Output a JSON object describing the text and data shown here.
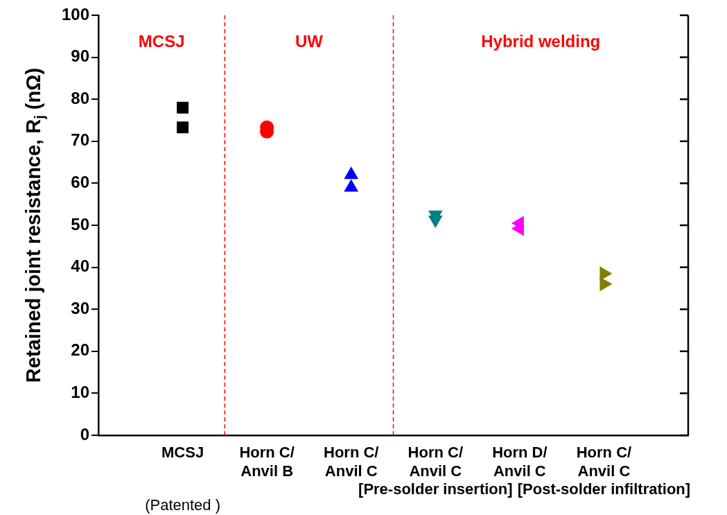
{
  "chart_data": {
    "type": "scatter",
    "ylabel": "Retained joint resistance, R$_{j}$ (nΩ)",
    "categories": [
      "MCSJ",
      "Horn C/\nAnvil B",
      "Horn C/\nAnvil C",
      "Horn C/\nAnvil C\n[Pre-solder insertion]",
      "Horn D/\nAnvil C",
      "Horn C/\nAnvil C\n[Post-solder infiltration]"
    ],
    "series": [
      {
        "color": "#000000",
        "marker": "square",
        "x": [
          "MCSJ",
          "MCSJ"
        ],
        "values": [
          78,
          73.3
        ]
      },
      {
        "color": "#ff0000",
        "marker": "circle",
        "x": [
          "Horn C/\nAnvil B",
          "Horn C/\nAnvil B"
        ],
        "values": [
          73.3,
          72.3
        ]
      },
      {
        "color": "#0000ff",
        "marker": "triangle",
        "x": [
          "Horn C/\nAnvil C",
          "Horn C/\nAnvil C"
        ],
        "values": [
          62,
          59
        ]
      },
      {
        "color": "#008080",
        "marker": "triangle-down",
        "x": [
          "Horn C/\nAnvil C\n[Pre-solder insertion]",
          "Horn C/\nAnvil C\n[Pre-solder insertion]"
        ],
        "values": [
          52.5,
          51.3
        ]
      },
      {
        "color": "#ff00ff",
        "marker": "triangle-left",
        "x": [
          "Horn D/\nAnvil C",
          "Horn D/\nAnvil C"
        ],
        "values": [
          50.5,
          49.2
        ]
      },
      {
        "color": "#808000",
        "marker": "triangle-right",
        "x": [
          "Horn C/\nAnvil C\n[Post-solder infiltration]",
          "Horn C/\nAnvil C\n[Post-solder infiltration]"
        ],
        "values": [
          38.5,
          36
        ]
      }
    ],
    "ylim": [
      0,
      100
    ],
    "yticks": [
      0,
      10,
      20,
      30,
      40,
      50,
      60,
      70,
      80,
      90,
      100
    ],
    "grid": false,
    "legend": false,
    "annotations": [
      "MCSJ",
      "UW",
      "Hybrid welding",
      "(Patented )"
    ]
  }
}
